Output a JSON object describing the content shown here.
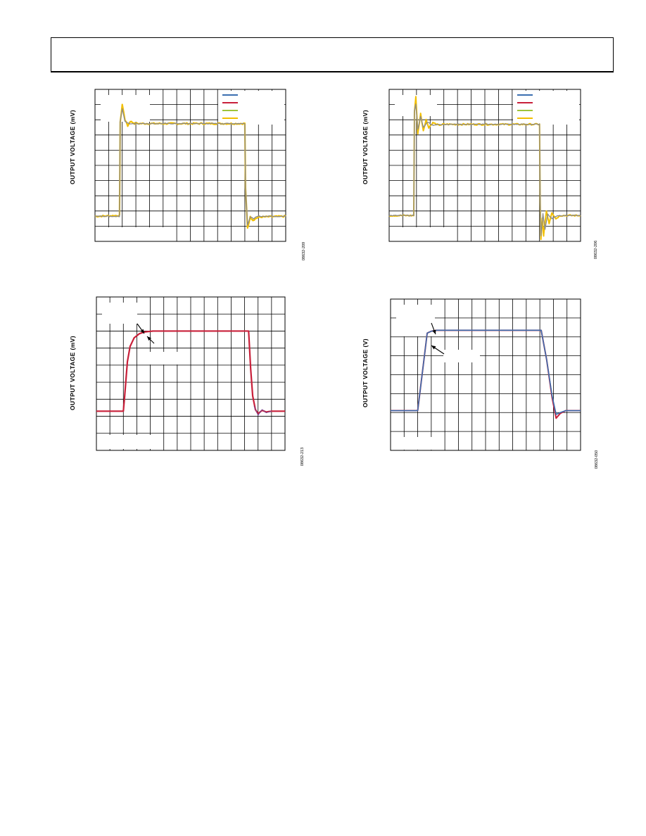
{
  "page": {},
  "colors": {
    "blue": "#3a6fb0",
    "red": "#c8203a",
    "green": "#9fc43a",
    "yellow": "#f2bf00",
    "gray": "#8a8a8a",
    "purple": "#6a4aa0",
    "grid": "#000000"
  },
  "chart_data": [
    {
      "id": "top-left",
      "type": "line",
      "ylabel": "OUTPUT VOLTAGE (mV)",
      "figure_id": "08632-209",
      "grid": true,
      "divisions": {
        "x": 14,
        "y": 10
      },
      "legend": {
        "placement": "top-right",
        "swatches": [
          "blue",
          "red",
          "green",
          "yellow"
        ]
      },
      "series": [
        {
          "color": "yellow",
          "width": 2.2,
          "noise": 0.05,
          "points": [
            [
              0,
              1.65
            ],
            [
              1.8,
              1.7
            ],
            [
              1.85,
              7.8
            ],
            [
              2.0,
              9.0
            ],
            [
              2.2,
              8.0
            ],
            [
              2.4,
              7.6
            ],
            [
              2.6,
              7.9
            ],
            [
              2.9,
              7.75
            ],
            [
              11.0,
              7.75
            ],
            [
              11.05,
              3.5
            ],
            [
              11.2,
              0.9
            ],
            [
              11.4,
              1.6
            ],
            [
              11.6,
              1.4
            ],
            [
              12.0,
              1.6
            ],
            [
              14,
              1.65
            ]
          ]
        },
        {
          "color": "gray",
          "width": 1.3,
          "noise": 0.03,
          "points": [
            [
              0,
              1.65
            ],
            [
              1.8,
              1.65
            ],
            [
              1.85,
              7.9
            ],
            [
              2.0,
              8.7
            ],
            [
              2.2,
              7.9
            ],
            [
              2.5,
              7.75
            ],
            [
              11.0,
              7.75
            ],
            [
              11.05,
              3.5
            ],
            [
              11.2,
              1.1
            ],
            [
              11.4,
              1.6
            ],
            [
              11.6,
              1.5
            ],
            [
              12.0,
              1.65
            ],
            [
              14,
              1.65
            ]
          ]
        }
      ]
    },
    {
      "id": "top-right",
      "type": "line",
      "ylabel": "OUTPUT VOLTAGE (mV)",
      "figure_id": "08632-206",
      "grid": true,
      "divisions": {
        "x": 14,
        "y": 10
      },
      "legend": {
        "placement": "top-right",
        "swatches": [
          "blue",
          "red",
          "green",
          "yellow"
        ]
      },
      "series": [
        {
          "color": "yellow",
          "width": 2.0,
          "noise": 0.05,
          "points": [
            [
              0,
              1.7
            ],
            [
              1.8,
              1.7
            ],
            [
              1.85,
              8.5
            ],
            [
              1.95,
              9.5
            ],
            [
              2.1,
              7.1
            ],
            [
              2.3,
              8.4
            ],
            [
              2.5,
              7.3
            ],
            [
              2.7,
              8.0
            ],
            [
              2.9,
              7.5
            ],
            [
              3.2,
              7.8
            ],
            [
              3.6,
              7.65
            ],
            [
              4,
              7.7
            ],
            [
              11.0,
              7.7
            ],
            [
              11.05,
              2.5
            ],
            [
              11.1,
              0.1
            ],
            [
              11.2,
              1.5
            ],
            [
              11.3,
              0.4
            ],
            [
              11.5,
              2.0
            ],
            [
              11.7,
              1.2
            ],
            [
              11.9,
              1.9
            ],
            [
              12.2,
              1.5
            ],
            [
              12.5,
              1.7
            ],
            [
              14,
              1.7
            ]
          ]
        },
        {
          "color": "gray",
          "width": 1.3,
          "noise": 0.03,
          "points": [
            [
              0,
              1.7
            ],
            [
              1.8,
              1.7
            ],
            [
              1.85,
              8.6
            ],
            [
              1.95,
              9.0
            ],
            [
              2.1,
              7.4
            ],
            [
              2.3,
              8.2
            ],
            [
              2.5,
              7.5
            ],
            [
              2.8,
              7.85
            ],
            [
              3.2,
              7.65
            ],
            [
              4,
              7.7
            ],
            [
              11.0,
              7.7
            ],
            [
              11.05,
              2.5
            ],
            [
              11.1,
              0.4
            ],
            [
              11.25,
              1.8
            ],
            [
              11.4,
              0.8
            ],
            [
              11.6,
              1.8
            ],
            [
              11.9,
              1.5
            ],
            [
              12.3,
              1.7
            ],
            [
              14,
              1.7
            ]
          ]
        }
      ]
    },
    {
      "id": "bottom-left",
      "type": "line",
      "ylabel": "OUTPUT VOLTAGE (mV)",
      "figure_id": "08632-213",
      "grid": true,
      "divisions": {
        "x": 14,
        "y": 9
      },
      "series": [
        {
          "color": "red",
          "width": 2.2,
          "noise": 0,
          "points": [
            [
              0,
              2.3
            ],
            [
              2.0,
              2.3
            ],
            [
              2.1,
              3.2
            ],
            [
              2.3,
              5.2
            ],
            [
              2.5,
              6.1
            ],
            [
              2.8,
              6.6
            ],
            [
              3.2,
              6.85
            ],
            [
              3.6,
              6.95
            ],
            [
              4.2,
              7.0
            ],
            [
              11.3,
              7.0
            ],
            [
              11.45,
              4.8
            ],
            [
              11.6,
              3.2
            ],
            [
              11.8,
              2.4
            ],
            [
              12.0,
              2.15
            ],
            [
              12.3,
              2.35
            ],
            [
              12.6,
              2.25
            ],
            [
              13,
              2.3
            ],
            [
              14,
              2.3
            ]
          ]
        },
        {
          "color": "purple",
          "width": 0.8,
          "noise": 0,
          "points": [
            [
              11.7,
              2.6
            ],
            [
              12.0,
              2.05
            ],
            [
              12.3,
              2.4
            ],
            [
              12.6,
              2.2
            ],
            [
              13,
              2.3
            ]
          ]
        }
      ]
    },
    {
      "id": "bottom-right",
      "type": "line",
      "ylabel": "OUTPUT VOLTAGE (V)",
      "figure_id": "08632-050",
      "grid": true,
      "divisions": {
        "x": 14,
        "y": 8
      },
      "series": [
        {
          "color": "red",
          "width": 2.0,
          "noise": 0,
          "points": [
            [
              0,
              2.1
            ],
            [
              2.0,
              2.1
            ],
            [
              2.7,
              6.2
            ],
            [
              3.0,
              6.3
            ],
            [
              3.4,
              6.35
            ],
            [
              11.1,
              6.35
            ],
            [
              11.5,
              4.8
            ],
            [
              11.9,
              2.8
            ],
            [
              12.2,
              1.7
            ],
            [
              12.5,
              1.95
            ],
            [
              12.9,
              2.1
            ],
            [
              14,
              2.1
            ]
          ]
        },
        {
          "color": "blue",
          "width": 1.6,
          "noise": 0,
          "points": [
            [
              0,
              2.1
            ],
            [
              2.0,
              2.1
            ],
            [
              2.7,
              6.2
            ],
            [
              3.0,
              6.3
            ],
            [
              3.4,
              6.35
            ],
            [
              11.1,
              6.35
            ],
            [
              11.5,
              4.8
            ],
            [
              11.9,
              2.9
            ],
            [
              12.2,
              1.9
            ],
            [
              12.5,
              2.0
            ],
            [
              12.9,
              2.1
            ],
            [
              14,
              2.1
            ]
          ]
        }
      ]
    }
  ]
}
